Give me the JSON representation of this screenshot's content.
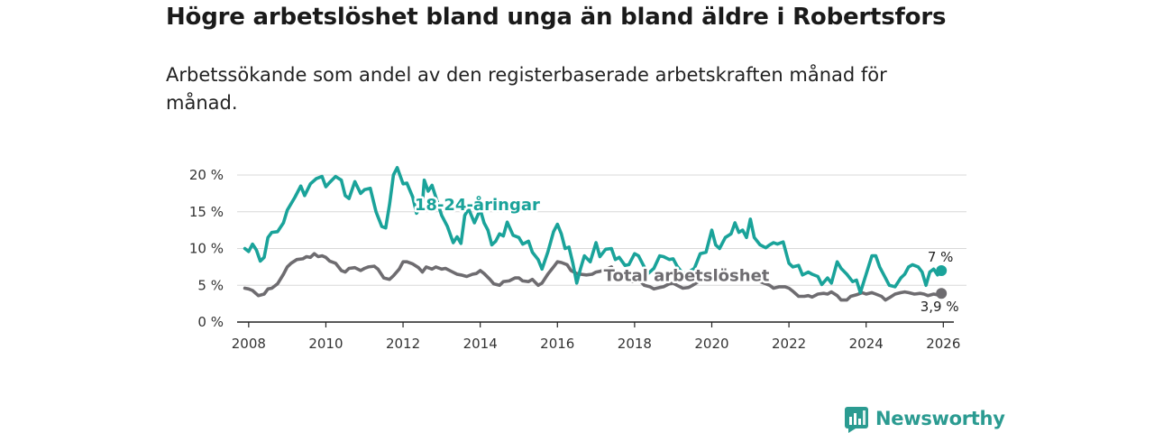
{
  "title": "Högre arbetslöshet bland unga än bland äldre i Robertsfors",
  "subtitle": "Arbetssökande som andel av den registerbaserade arbetskraften månad för månad.",
  "brand": "Newsworthy",
  "colors": {
    "youth": "#1aa39a",
    "total": "#6e6c70",
    "grid": "#d8d8d8",
    "brand": "#2b9b91"
  },
  "chart_data": {
    "type": "line",
    "ylim": [
      0,
      20
    ],
    "xlim": [
      2007.7,
      2026.6
    ],
    "y_ticks": [
      0,
      5,
      10,
      15,
      20
    ],
    "y_tick_labels": [
      "0 %",
      "5 %",
      "10 %",
      "15 %",
      "20 %"
    ],
    "x_ticks": [
      2008,
      2010,
      2012,
      2014,
      2016,
      2018,
      2020,
      2022,
      2024,
      2026
    ],
    "x_tick_labels": [
      "2008",
      "2010",
      "2012",
      "2014",
      "2016",
      "2018",
      "2020",
      "2022",
      "2024",
      "2026"
    ],
    "series": [
      {
        "name": "18-24-åringar",
        "label": "18-24-åringar",
        "end_label": "7 %",
        "color": "#1aa39a",
        "points": [
          [
            2007.9,
            10.0
          ],
          [
            2008.0,
            9.6
          ],
          [
            2008.1,
            10.6
          ],
          [
            2008.2,
            9.8
          ],
          [
            2008.3,
            8.3
          ],
          [
            2008.4,
            8.8
          ],
          [
            2008.5,
            11.5
          ],
          [
            2008.6,
            12.2
          ],
          [
            2008.75,
            12.3
          ],
          [
            2008.9,
            13.5
          ],
          [
            2009.0,
            15.2
          ],
          [
            2009.2,
            17.0
          ],
          [
            2009.35,
            18.5
          ],
          [
            2009.45,
            17.2
          ],
          [
            2009.6,
            18.8
          ],
          [
            2009.75,
            19.5
          ],
          [
            2009.9,
            19.8
          ],
          [
            2010.0,
            18.4
          ],
          [
            2010.1,
            19.0
          ],
          [
            2010.25,
            19.8
          ],
          [
            2010.4,
            19.3
          ],
          [
            2010.5,
            17.2
          ],
          [
            2010.6,
            16.8
          ],
          [
            2010.75,
            19.1
          ],
          [
            2010.9,
            17.5
          ],
          [
            2011.0,
            18.0
          ],
          [
            2011.15,
            18.2
          ],
          [
            2011.3,
            15.0
          ],
          [
            2011.45,
            13.0
          ],
          [
            2011.55,
            12.8
          ],
          [
            2011.65,
            16.0
          ],
          [
            2011.75,
            20.0
          ],
          [
            2011.85,
            21.0
          ],
          [
            2012.0,
            18.8
          ],
          [
            2012.1,
            18.9
          ],
          [
            2012.25,
            17.0
          ],
          [
            2012.35,
            14.8
          ],
          [
            2012.5,
            16.0
          ],
          [
            2012.55,
            19.3
          ],
          [
            2012.65,
            17.8
          ],
          [
            2012.75,
            18.6
          ],
          [
            2012.85,
            17.0
          ],
          [
            2013.0,
            14.5
          ],
          [
            2013.15,
            13.0
          ],
          [
            2013.3,
            10.8
          ],
          [
            2013.4,
            11.6
          ],
          [
            2013.5,
            10.7
          ],
          [
            2013.6,
            14.5
          ],
          [
            2013.7,
            15.4
          ],
          [
            2013.85,
            13.5
          ],
          [
            2014.0,
            15.3
          ],
          [
            2014.1,
            13.5
          ],
          [
            2014.2,
            12.5
          ],
          [
            2014.3,
            10.5
          ],
          [
            2014.4,
            11.0
          ],
          [
            2014.5,
            12.0
          ],
          [
            2014.6,
            11.7
          ],
          [
            2014.7,
            13.6
          ],
          [
            2014.85,
            11.8
          ],
          [
            2015.0,
            11.5
          ],
          [
            2015.1,
            10.6
          ],
          [
            2015.25,
            11.0
          ],
          [
            2015.35,
            9.5
          ],
          [
            2015.5,
            8.5
          ],
          [
            2015.6,
            7.2
          ],
          [
            2015.75,
            9.5
          ],
          [
            2015.9,
            12.3
          ],
          [
            2016.0,
            13.3
          ],
          [
            2016.1,
            12.0
          ],
          [
            2016.2,
            10.0
          ],
          [
            2016.3,
            10.2
          ],
          [
            2016.4,
            8.0
          ],
          [
            2016.5,
            5.3
          ],
          [
            2016.6,
            7.3
          ],
          [
            2016.7,
            9.0
          ],
          [
            2016.85,
            8.2
          ],
          [
            2017.0,
            10.8
          ],
          [
            2017.1,
            8.9
          ],
          [
            2017.25,
            9.9
          ],
          [
            2017.4,
            10.0
          ],
          [
            2017.5,
            8.5
          ],
          [
            2017.6,
            8.8
          ],
          [
            2017.75,
            7.7
          ],
          [
            2017.85,
            7.8
          ],
          [
            2018.0,
            9.3
          ],
          [
            2018.1,
            9.0
          ],
          [
            2018.25,
            7.5
          ],
          [
            2018.35,
            6.6
          ],
          [
            2018.5,
            7.3
          ],
          [
            2018.65,
            9.0
          ],
          [
            2018.75,
            8.9
          ],
          [
            2018.9,
            8.5
          ],
          [
            2019.0,
            8.6
          ],
          [
            2019.1,
            7.6
          ],
          [
            2019.25,
            6.6
          ],
          [
            2019.4,
            6.8
          ],
          [
            2019.55,
            7.3
          ],
          [
            2019.7,
            9.3
          ],
          [
            2019.85,
            9.5
          ],
          [
            2020.0,
            12.5
          ],
          [
            2020.1,
            10.5
          ],
          [
            2020.2,
            10.0
          ],
          [
            2020.35,
            11.5
          ],
          [
            2020.5,
            12.0
          ],
          [
            2020.6,
            13.5
          ],
          [
            2020.7,
            12.2
          ],
          [
            2020.8,
            12.5
          ],
          [
            2020.9,
            11.5
          ],
          [
            2021.0,
            14.0
          ],
          [
            2021.1,
            11.5
          ],
          [
            2021.25,
            10.5
          ],
          [
            2021.4,
            10.1
          ],
          [
            2021.5,
            10.5
          ],
          [
            2021.6,
            10.8
          ],
          [
            2021.7,
            10.6
          ],
          [
            2021.85,
            10.9
          ],
          [
            2022.0,
            8.0
          ],
          [
            2022.1,
            7.5
          ],
          [
            2022.25,
            7.7
          ],
          [
            2022.35,
            6.4
          ],
          [
            2022.5,
            6.8
          ],
          [
            2022.6,
            6.5
          ],
          [
            2022.75,
            6.2
          ],
          [
            2022.85,
            5.1
          ],
          [
            2023.0,
            6.0
          ],
          [
            2023.1,
            5.3
          ],
          [
            2023.25,
            8.2
          ],
          [
            2023.35,
            7.3
          ],
          [
            2023.5,
            6.5
          ],
          [
            2023.65,
            5.5
          ],
          [
            2023.75,
            5.7
          ],
          [
            2023.85,
            4.0
          ],
          [
            2024.0,
            6.5
          ],
          [
            2024.15,
            9.0
          ],
          [
            2024.25,
            9.0
          ],
          [
            2024.35,
            7.5
          ],
          [
            2024.5,
            6.0
          ],
          [
            2024.6,
            5.0
          ],
          [
            2024.75,
            4.8
          ],
          [
            2024.9,
            6.0
          ],
          [
            2025.0,
            6.5
          ],
          [
            2025.1,
            7.5
          ],
          [
            2025.2,
            7.8
          ],
          [
            2025.35,
            7.5
          ],
          [
            2025.45,
            6.8
          ],
          [
            2025.55,
            5.0
          ],
          [
            2025.65,
            6.8
          ],
          [
            2025.75,
            7.2
          ],
          [
            2025.85,
            6.4
          ],
          [
            2025.95,
            7.0
          ]
        ]
      },
      {
        "name": "Total arbetslöshet",
        "label": "Total arbetslöshet",
        "end_label": "3,9 %",
        "color": "#6e6c70",
        "points": [
          [
            2007.9,
            4.6
          ],
          [
            2008.0,
            4.5
          ],
          [
            2008.1,
            4.3
          ],
          [
            2008.25,
            3.6
          ],
          [
            2008.4,
            3.8
          ],
          [
            2008.5,
            4.5
          ],
          [
            2008.6,
            4.6
          ],
          [
            2008.75,
            5.2
          ],
          [
            2008.9,
            6.5
          ],
          [
            2009.0,
            7.5
          ],
          [
            2009.1,
            8.0
          ],
          [
            2009.25,
            8.5
          ],
          [
            2009.4,
            8.6
          ],
          [
            2009.5,
            8.9
          ],
          [
            2009.6,
            8.8
          ],
          [
            2009.7,
            9.3
          ],
          [
            2009.8,
            8.9
          ],
          [
            2009.9,
            9.0
          ],
          [
            2010.0,
            8.8
          ],
          [
            2010.1,
            8.3
          ],
          [
            2010.25,
            8.0
          ],
          [
            2010.4,
            7.0
          ],
          [
            2010.5,
            6.8
          ],
          [
            2010.6,
            7.3
          ],
          [
            2010.75,
            7.4
          ],
          [
            2010.9,
            7.0
          ],
          [
            2011.0,
            7.3
          ],
          [
            2011.1,
            7.5
          ],
          [
            2011.25,
            7.6
          ],
          [
            2011.35,
            7.2
          ],
          [
            2011.5,
            6.0
          ],
          [
            2011.65,
            5.8
          ],
          [
            2011.75,
            6.3
          ],
          [
            2011.9,
            7.2
          ],
          [
            2012.0,
            8.2
          ],
          [
            2012.1,
            8.2
          ],
          [
            2012.25,
            7.9
          ],
          [
            2012.4,
            7.4
          ],
          [
            2012.5,
            6.8
          ],
          [
            2012.6,
            7.5
          ],
          [
            2012.75,
            7.2
          ],
          [
            2012.85,
            7.5
          ],
          [
            2013.0,
            7.2
          ],
          [
            2013.1,
            7.3
          ],
          [
            2013.25,
            6.9
          ],
          [
            2013.4,
            6.5
          ],
          [
            2013.5,
            6.4
          ],
          [
            2013.65,
            6.2
          ],
          [
            2013.8,
            6.5
          ],
          [
            2013.9,
            6.6
          ],
          [
            2014.0,
            7.0
          ],
          [
            2014.1,
            6.6
          ],
          [
            2014.25,
            5.8
          ],
          [
            2014.35,
            5.2
          ],
          [
            2014.5,
            5.0
          ],
          [
            2014.6,
            5.5
          ],
          [
            2014.75,
            5.6
          ],
          [
            2014.9,
            6.0
          ],
          [
            2015.0,
            6.0
          ],
          [
            2015.1,
            5.6
          ],
          [
            2015.25,
            5.5
          ],
          [
            2015.35,
            5.8
          ],
          [
            2015.5,
            5.0
          ],
          [
            2015.6,
            5.3
          ],
          [
            2015.75,
            6.5
          ],
          [
            2015.9,
            7.5
          ],
          [
            2016.0,
            8.2
          ],
          [
            2016.1,
            8.1
          ],
          [
            2016.25,
            7.8
          ],
          [
            2016.35,
            7.0
          ],
          [
            2016.5,
            6.6
          ],
          [
            2016.6,
            6.5
          ],
          [
            2016.75,
            6.4
          ],
          [
            2016.9,
            6.5
          ],
          [
            2017.0,
            6.8
          ],
          [
            2017.1,
            6.9
          ],
          [
            2017.25,
            7.1
          ],
          [
            2017.4,
            7.5
          ],
          [
            2017.5,
            6.5
          ],
          [
            2017.6,
            6.0
          ],
          [
            2017.75,
            5.8
          ],
          [
            2017.9,
            5.5
          ],
          [
            2018.0,
            5.5
          ],
          [
            2018.15,
            5.6
          ],
          [
            2018.25,
            5.0
          ],
          [
            2018.4,
            4.8
          ],
          [
            2018.5,
            4.5
          ],
          [
            2018.65,
            4.7
          ],
          [
            2018.75,
            4.8
          ],
          [
            2018.9,
            5.2
          ],
          [
            2019.0,
            5.3
          ],
          [
            2019.1,
            5.0
          ],
          [
            2019.25,
            4.6
          ],
          [
            2019.4,
            4.7
          ],
          [
            2019.5,
            5.0
          ],
          [
            2019.65,
            5.5
          ],
          [
            2019.75,
            5.6
          ],
          [
            2019.9,
            6.0
          ],
          [
            2020.0,
            6.6
          ],
          [
            2020.1,
            6.3
          ],
          [
            2020.25,
            6.0
          ],
          [
            2020.4,
            6.2
          ],
          [
            2020.5,
            6.6
          ],
          [
            2020.6,
            6.3
          ],
          [
            2020.75,
            6.0
          ],
          [
            2020.9,
            6.2
          ],
          [
            2021.0,
            6.5
          ],
          [
            2021.1,
            6.1
          ],
          [
            2021.25,
            5.5
          ],
          [
            2021.4,
            5.2
          ],
          [
            2021.5,
            5.0
          ],
          [
            2021.6,
            4.6
          ],
          [
            2021.75,
            4.8
          ],
          [
            2021.9,
            4.8
          ],
          [
            2022.0,
            4.6
          ],
          [
            2022.1,
            4.2
          ],
          [
            2022.25,
            3.5
          ],
          [
            2022.4,
            3.5
          ],
          [
            2022.5,
            3.6
          ],
          [
            2022.6,
            3.4
          ],
          [
            2022.75,
            3.8
          ],
          [
            2022.9,
            3.9
          ],
          [
            2023.0,
            3.8
          ],
          [
            2023.1,
            4.1
          ],
          [
            2023.25,
            3.6
          ],
          [
            2023.35,
            3.0
          ],
          [
            2023.5,
            3.0
          ],
          [
            2023.6,
            3.5
          ],
          [
            2023.75,
            3.7
          ],
          [
            2023.9,
            4.0
          ],
          [
            2024.0,
            3.8
          ],
          [
            2024.15,
            4.0
          ],
          [
            2024.25,
            3.8
          ],
          [
            2024.4,
            3.5
          ],
          [
            2024.5,
            3.0
          ],
          [
            2024.6,
            3.3
          ],
          [
            2024.75,
            3.8
          ],
          [
            2024.9,
            4.0
          ],
          [
            2025.0,
            4.1
          ],
          [
            2025.1,
            4.0
          ],
          [
            2025.25,
            3.8
          ],
          [
            2025.4,
            3.9
          ],
          [
            2025.5,
            3.8
          ],
          [
            2025.6,
            3.6
          ],
          [
            2025.75,
            3.8
          ],
          [
            2025.85,
            3.7
          ],
          [
            2025.95,
            3.9
          ]
        ]
      }
    ]
  }
}
